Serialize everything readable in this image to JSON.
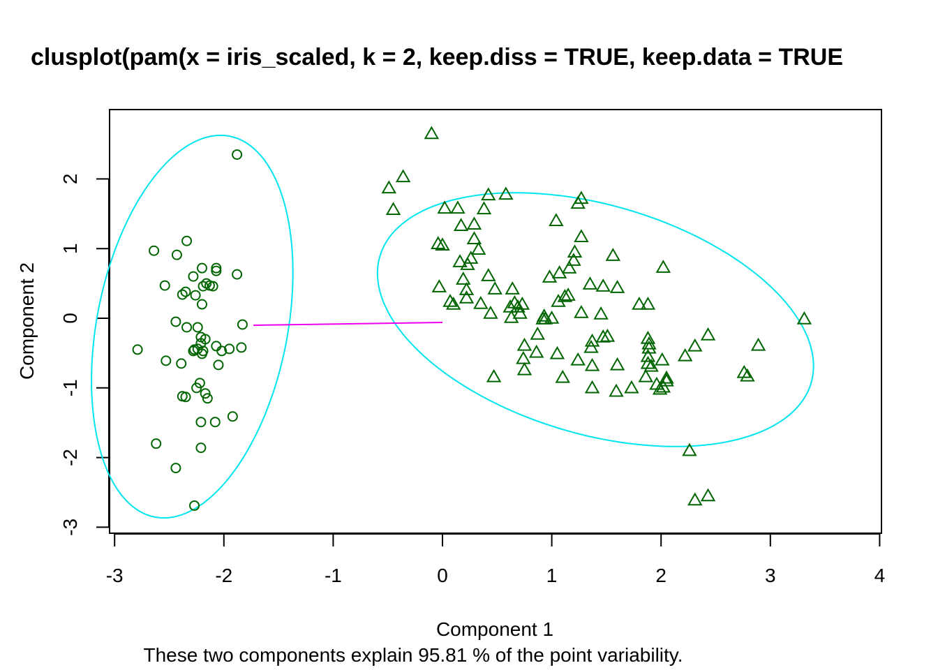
{
  "colors": {
    "background": "#ffffff",
    "axis": "#000000",
    "points": "#006400",
    "ellipse": "#00e5ee",
    "connector": "#ee00ee"
  },
  "chart_data": {
    "type": "scatter",
    "title": "clusplot(pam(x = iris_scaled, k = 2, keep.diss = TRUE, keep.data = TRUE",
    "xlabel": "Component 1",
    "ylabel": "Component 2",
    "subtitle": "These two components explain 95.81 % of the point variability.",
    "xlim": [
      -3,
      4
    ],
    "ylim": [
      -3,
      2.8
    ],
    "x_ticks": [
      "-3",
      "-2",
      "-1",
      "0",
      "1",
      "2",
      "3",
      "4"
    ],
    "y_ticks": [
      "-3",
      "-2",
      "-1",
      "0",
      "1",
      "2"
    ],
    "grid": false,
    "legend": "none",
    "clusters": [
      {
        "marker": "circle",
        "ellipse": {
          "center": [
            -2.29,
            -0.12
          ],
          "semi_axis_long": 2.76,
          "semi_axis_short": 0.88,
          "angle_deg": 84
        },
        "points": [
          [
            -1.88,
            2.35
          ],
          [
            -2.64,
            0.97
          ],
          [
            -2.34,
            1.11
          ],
          [
            -2.43,
            0.91
          ],
          [
            -2.2,
            0.72
          ],
          [
            -2.07,
            0.72
          ],
          [
            -2.07,
            0.68
          ],
          [
            -1.88,
            0.63
          ],
          [
            -2.28,
            0.6
          ],
          [
            -2.54,
            0.47
          ],
          [
            -2.16,
            0.5
          ],
          [
            -2.13,
            0.47
          ],
          [
            -2.1,
            0.46
          ],
          [
            -2.19,
            0.46
          ],
          [
            -2.35,
            0.38
          ],
          [
            -2.38,
            0.34
          ],
          [
            -2.26,
            0.33
          ],
          [
            -2.2,
            0.2
          ],
          [
            -2.44,
            -0.05
          ],
          [
            -2.34,
            -0.13
          ],
          [
            -2.24,
            -0.13
          ],
          [
            -1.83,
            -0.09
          ],
          [
            -2.21,
            -0.27
          ],
          [
            -2.17,
            -0.3
          ],
          [
            -2.21,
            -0.36
          ],
          [
            -2.24,
            -0.44
          ],
          [
            -2.27,
            -0.45
          ],
          [
            -2.19,
            -0.47
          ],
          [
            -2.28,
            -0.47
          ],
          [
            -2.2,
            -0.51
          ],
          [
            -2.07,
            -0.4
          ],
          [
            -1.84,
            -0.42
          ],
          [
            -1.95,
            -0.44
          ],
          [
            -2.02,
            -0.47
          ],
          [
            -2.79,
            -0.45
          ],
          [
            -2.53,
            -0.61
          ],
          [
            -2.39,
            -0.65
          ],
          [
            -2.05,
            -0.67
          ],
          [
            -2.22,
            -0.93
          ],
          [
            -2.25,
            -1.0
          ],
          [
            -2.17,
            -1.08
          ],
          [
            -2.38,
            -1.12
          ],
          [
            -2.35,
            -1.13
          ],
          [
            -2.15,
            -1.15
          ],
          [
            -1.92,
            -1.41
          ],
          [
            -2.21,
            -1.49
          ],
          [
            -2.08,
            -1.49
          ],
          [
            -2.62,
            -1.8
          ],
          [
            -2.21,
            -1.86
          ],
          [
            -2.44,
            -2.15
          ],
          [
            -2.27,
            -2.69
          ]
        ]
      },
      {
        "marker": "triangle",
        "ellipse": {
          "center": [
            1.4,
            -0.02
          ],
          "semi_axis_long": 2.24,
          "semi_axis_short": 1.51,
          "angle_deg": -38
        },
        "points": [
          [
            -0.1,
            2.65
          ],
          [
            -0.36,
            2.03
          ],
          [
            -0.49,
            1.87
          ],
          [
            -0.45,
            1.56
          ],
          [
            0.42,
            1.77
          ],
          [
            0.58,
            1.78
          ],
          [
            0.38,
            1.57
          ],
          [
            0.02,
            1.58
          ],
          [
            0.14,
            1.58
          ],
          [
            0.17,
            1.33
          ],
          [
            0.29,
            1.35
          ],
          [
            0.29,
            1.14
          ],
          [
            -0.04,
            1.07
          ],
          [
            0.0,
            1.05
          ],
          [
            0.33,
            0.99
          ],
          [
            0.26,
            0.86
          ],
          [
            0.16,
            0.81
          ],
          [
            0.23,
            0.77
          ],
          [
            0.42,
            0.61
          ],
          [
            0.19,
            0.56
          ],
          [
            -0.03,
            0.45
          ],
          [
            0.22,
            0.41
          ],
          [
            0.48,
            0.42
          ],
          [
            0.64,
            0.42
          ],
          [
            0.22,
            0.29
          ],
          [
            0.07,
            0.24
          ],
          [
            0.1,
            0.2
          ],
          [
            0.35,
            0.21
          ],
          [
            0.62,
            0.16
          ],
          [
            0.66,
            0.22
          ],
          [
            0.69,
            0.16
          ],
          [
            0.73,
            0.2
          ],
          [
            0.44,
            0.07
          ],
          [
            0.71,
            0.07
          ],
          [
            0.63,
            0.01
          ],
          [
            0.47,
            -0.84
          ],
          [
            1.04,
            1.4
          ],
          [
            1.24,
            1.65
          ],
          [
            1.27,
            1.72
          ],
          [
            1.27,
            1.17
          ],
          [
            1.21,
            0.95
          ],
          [
            1.2,
            0.83
          ],
          [
            1.16,
            0.72
          ],
          [
            1.07,
            0.65
          ],
          [
            0.98,
            0.59
          ],
          [
            1.06,
            0.24
          ],
          [
            1.12,
            0.31
          ],
          [
            1.15,
            0.33
          ],
          [
            1.27,
            0.08
          ],
          [
            0.92,
            -0.01
          ],
          [
            0.94,
            -0.01
          ],
          [
            0.93,
            0.03
          ],
          [
            1.0,
            0.0
          ],
          [
            0.87,
            -0.23
          ],
          [
            0.75,
            -0.39
          ],
          [
            0.74,
            -0.58
          ],
          [
            0.86,
            -0.49
          ],
          [
            0.75,
            -0.74
          ],
          [
            1.05,
            -0.51
          ],
          [
            1.1,
            -0.85
          ],
          [
            1.24,
            -0.6
          ],
          [
            1.35,
            0.49
          ],
          [
            1.47,
            0.46
          ],
          [
            1.56,
            0.9
          ],
          [
            1.6,
            0.44
          ],
          [
            1.45,
            0.06
          ],
          [
            1.51,
            -0.26
          ],
          [
            1.47,
            -0.27
          ],
          [
            1.37,
            -0.33
          ],
          [
            1.36,
            -0.42
          ],
          [
            1.37,
            -0.68
          ],
          [
            1.37,
            -1.0
          ],
          [
            1.6,
            -0.67
          ],
          [
            1.59,
            -1.05
          ],
          [
            1.73,
            -1.0
          ],
          [
            1.8,
            0.2
          ],
          [
            1.88,
            0.2
          ],
          [
            2.02,
            0.73
          ],
          [
            1.88,
            -0.29
          ],
          [
            1.89,
            -0.37
          ],
          [
            1.89,
            -0.43
          ],
          [
            1.88,
            -0.55
          ],
          [
            1.88,
            -0.65
          ],
          [
            1.91,
            -0.69
          ],
          [
            2.01,
            -0.6
          ],
          [
            1.86,
            -0.84
          ],
          [
            1.96,
            -0.95
          ],
          [
            2.02,
            -0.99
          ],
          [
            1.99,
            -1.02
          ],
          [
            2.05,
            -0.86
          ],
          [
            2.05,
            -0.9
          ],
          [
            2.22,
            -0.54
          ],
          [
            2.31,
            -0.4
          ],
          [
            2.43,
            -0.24
          ],
          [
            2.89,
            -0.39
          ],
          [
            2.76,
            -0.78
          ],
          [
            2.79,
            -0.83
          ],
          [
            2.26,
            -1.9
          ],
          [
            2.31,
            -2.61
          ],
          [
            2.43,
            -2.55
          ],
          [
            3.31,
            -0.01
          ]
        ]
      }
    ],
    "connector": {
      "from": [
        -1.73,
        -0.1
      ],
      "to": [
        0.0,
        -0.06
      ]
    }
  }
}
